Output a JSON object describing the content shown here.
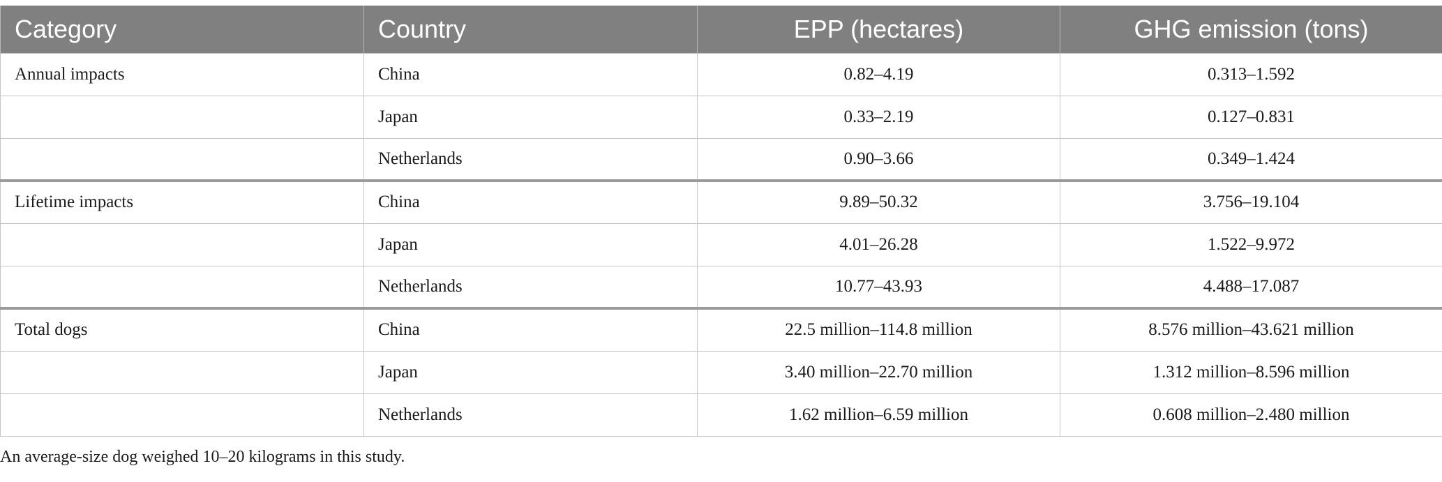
{
  "table": {
    "headers": [
      "Category",
      "Country",
      "EPP (hectares)",
      "GHG emission (tons)"
    ],
    "rows": [
      {
        "category": "Annual impacts",
        "country": "China",
        "epp": "0.82–4.19",
        "ghg": "0.313–1.592"
      },
      {
        "category": "",
        "country": "Japan",
        "epp": "0.33–2.19",
        "ghg": "0.127–0.831"
      },
      {
        "category": "",
        "country": "Netherlands",
        "epp": "0.90–3.66",
        "ghg": "0.349–1.424"
      },
      {
        "category": "Lifetime impacts",
        "country": "China",
        "epp": "9.89–50.32",
        "ghg": "3.756–19.104"
      },
      {
        "category": "",
        "country": "Japan",
        "epp": "4.01–26.28",
        "ghg": "1.522–9.972"
      },
      {
        "category": "",
        "country": "Netherlands",
        "epp": "10.77–43.93",
        "ghg": "4.488–17.087"
      },
      {
        "category": "Total dogs",
        "country": "China",
        "epp": "22.5 million–114.8 million",
        "ghg": "8.576 million–43.621 million"
      },
      {
        "category": "",
        "country": "Japan",
        "epp": "3.40 million–22.70 million",
        "ghg": "1.312 million–8.596 million"
      },
      {
        "category": "",
        "country": "Netherlands",
        "epp": "1.62 million–6.59 million",
        "ghg": "0.608 million–2.480 million"
      }
    ]
  },
  "footnote": "An average-size dog weighed 10–20 kilograms in this study.",
  "colors": {
    "header_bg": "#808080",
    "header_text": "#ffffff",
    "grid_line": "#c4c4c4",
    "group_divider": "#9a9a9a"
  }
}
